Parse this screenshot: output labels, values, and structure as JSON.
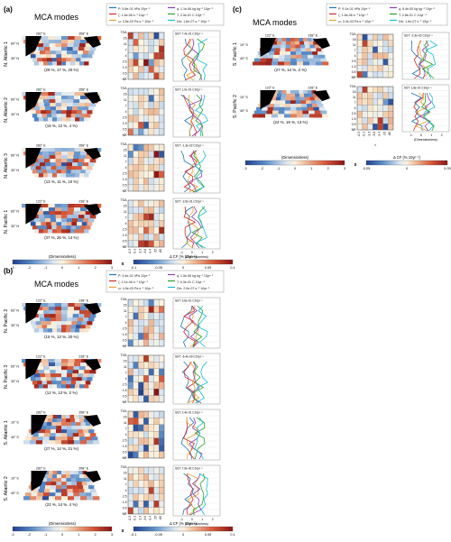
{
  "panel_labels": {
    "a": "(a)",
    "b": "(b)",
    "c": "(c)"
  },
  "titles": {
    "a": "MCA modes",
    "b": "MCA modes",
    "c": "MCA modes"
  },
  "legend_a": {
    "items": [
      {
        "label": "P: 5.8e-01 hPa 10yr⁻¹",
        "color": "#1f77b4"
      },
      {
        "label": "ζ: 1.6e-06 s⁻¹ 10yr⁻¹",
        "color": "#d62728"
      },
      {
        "label": "ω: 3.6e-03 Pa s⁻¹ 10yr⁻¹",
        "color": "#e8a32e"
      },
      {
        "label": "q: 1.1e-06 kg kg⁻¹ 10yr⁻¹",
        "color": "#8e3fb5"
      },
      {
        "label": "T: 3.3e-01 C 10yr⁻¹",
        "color": "#2ca02c"
      },
      {
        "label": "Div: 1.6e-07 s⁻¹ 10yr⁻¹",
        "color": "#17becf"
      }
    ]
  },
  "legend_b": {
    "items": [
      {
        "label": "P: 9.4e-01 hPa 10yr⁻¹",
        "color": "#1f77b4"
      },
      {
        "label": "ζ: 2.1e-06 s⁻¹ 10yr⁻¹",
        "color": "#d62728"
      },
      {
        "label": "ω: 4.5e-03 Pa s⁻¹ 10yr⁻¹",
        "color": "#e8a32e"
      },
      {
        "label": "q: 1.5e-06 kg kg⁻¹ 10yr⁻¹",
        "color": "#8e3fb5"
      },
      {
        "label": "T: 5.3e-01 C 10yr⁻¹",
        "color": "#2ca02c"
      },
      {
        "label": "Div: 2.0e-07 s⁻¹ 10yr⁻¹",
        "color": "#17becf"
      }
    ]
  },
  "legend_c": {
    "items": [
      {
        "label": "P: 9.1e-01 hPa 10yr⁻¹",
        "color": "#1f77b4"
      },
      {
        "label": "ζ: 1.6e-06 s⁻¹ 10yr⁻¹",
        "color": "#d62728"
      },
      {
        "label": "ω: 3.4e-03 Pa s⁻¹ 10yr⁻¹",
        "color": "#e8a32e"
      },
      {
        "label": "q: 6.4e-05 kg kg⁻¹ 10yr⁻¹",
        "color": "#8e3fb5"
      },
      {
        "label": "T: 2.8e-01 C 10yr⁻¹",
        "color": "#2ca02c"
      },
      {
        "label": "Div: 1.6e-07 s⁻¹ 10yr⁻¹",
        "color": "#17becf"
      }
    ]
  },
  "rows_a": [
    {
      "region": "N. Atlantic 1",
      "pct": "(29 %, 17 %, 20 %)",
      "sst": "SST: 7.4e-01 C10yr⁻¹",
      "lon": [
        "282° E",
        "358° E"
      ],
      "lat": [
        "60° N",
        "30° N"
      ]
    },
    {
      "region": "N. Atlantic 2",
      "pct": "(15 %, 12 %, 4 %)",
      "sst": "SST: 1.0e-01 C10yr⁻¹",
      "lon": [
        "282° E",
        "358° E"
      ],
      "lat": [
        "60° N",
        "30° N"
      ]
    },
    {
      "region": "N. Atlantic 3",
      "pct": "(13 %, 11 %, 10 %)",
      "sst": "SST: -1.3e-02 C10yr⁻¹",
      "lon": [
        "282° E",
        "358° E"
      ],
      "lat": [
        "60° N",
        "30° N"
      ]
    },
    {
      "region": "N. Pacific 1",
      "pct": "(37 %, 26 %, 14 %)",
      "sst": "SST: -3.5e-01 C10yr⁻¹",
      "lon": [
        "122° E",
        "238° E"
      ],
      "lat": [
        "60° N",
        "30° N"
      ]
    }
  ],
  "rows_b": [
    {
      "region": "N. Pacific 2",
      "pct": "(15 %, 13 %, 20 %)",
      "sst": "SST: 3.6e-01 C10yr⁻¹",
      "lon": [
        "122° E",
        "238° E"
      ],
      "lat": [
        "60° N",
        "30° N"
      ]
    },
    {
      "region": "N. Pacific 3",
      "pct": "(12 %, 13 %, 2 %)",
      "sst": "SST: -6.4e-03 C10yr⁻¹",
      "lon": [
        "122° E",
        "238° E"
      ],
      "lat": [
        "60° N",
        "30° N"
      ]
    },
    {
      "region": "S. Atlantic 1",
      "pct": "(27 %, 14 %, 21 %)",
      "sst": "SST: 2.4e-01 C10yr⁻¹",
      "lon": [
        "282° E",
        "358° E"
      ],
      "lat": [
        "10° S",
        "40° S"
      ]
    },
    {
      "region": "S. Atlantic 2",
      "pct": "(22 %, 14 %, 4 %)",
      "sst": "SST: 7.6e-02 C10yr⁻¹",
      "lon": [
        "282° E",
        "358° E"
      ],
      "lat": [
        "10° S",
        "40° S"
      ]
    }
  ],
  "rows_c": [
    {
      "region": "S. Pacific 1",
      "pct": "(27 %, 14 %, 2 %)",
      "sst": "SST: -2.3e-02 C10yr⁻¹",
      "lon": [
        "122° E",
        "238° E"
      ],
      "lat": [
        "10° S",
        "40° S"
      ]
    },
    {
      "region": "S. Pacific 2",
      "pct": "(24 %, 19 %, 13 %)",
      "sst": "SST: 1.8e-01 C10yr⁻¹",
      "lon": [
        "122° E",
        "238° E"
      ],
      "lat": [
        "10° S",
        "40° S"
      ]
    }
  ],
  "heat_y_ticks": [
    "TOA",
    "15",
    "11",
    "7",
    "4",
    "2.5",
    "1.5",
    "0.5",
    "NR"
  ],
  "heat_x_ticks": [
    "-0.3",
    "-0.1",
    "-1.3",
    "-3.6",
    "-9.4",
    "-23",
    "-60"
  ],
  "tau_label": "τ",
  "colorbars": {
    "map_ticks": [
      "-3",
      "-2",
      "-1",
      "0",
      "1",
      "2",
      "3"
    ],
    "map_label": "(Dimensionless)",
    "cf_ticks": [
      "-0.1",
      "-0.05",
      "0",
      "0.05",
      "0.1"
    ],
    "cf_label": "Δ CF (% 10yr⁻¹)",
    "cf_ticks_c": [
      "-0.05",
      "0",
      "0.05"
    ],
    "x_mark": "x"
  },
  "profile_x_ticks": [
    "-1",
    "0",
    "1",
    "2"
  ],
  "profile_x_label": "(Dimensionless)"
}
